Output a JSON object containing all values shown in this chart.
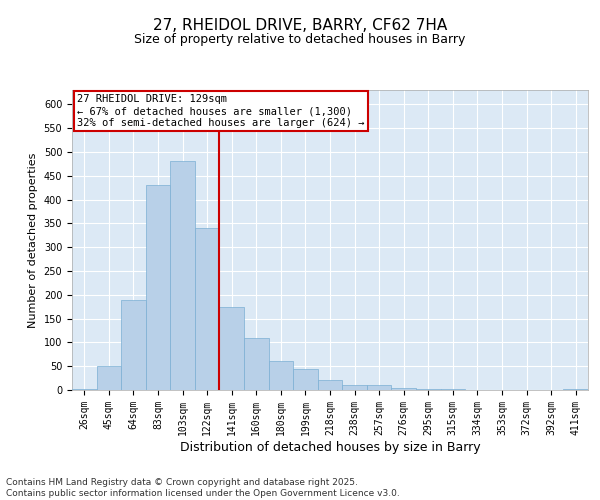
{
  "title_line1": "27, RHEIDOL DRIVE, BARRY, CF62 7HA",
  "title_line2": "Size of property relative to detached houses in Barry",
  "xlabel": "Distribution of detached houses by size in Barry",
  "ylabel": "Number of detached properties",
  "categories": [
    "26sqm",
    "45sqm",
    "64sqm",
    "83sqm",
    "103sqm",
    "122sqm",
    "141sqm",
    "160sqm",
    "180sqm",
    "199sqm",
    "218sqm",
    "238sqm",
    "257sqm",
    "276sqm",
    "295sqm",
    "315sqm",
    "334sqm",
    "353sqm",
    "372sqm",
    "392sqm",
    "411sqm"
  ],
  "values": [
    2,
    50,
    190,
    430,
    480,
    340,
    175,
    110,
    60,
    45,
    20,
    10,
    10,
    5,
    3,
    2,
    1,
    0,
    1,
    0,
    2
  ],
  "bar_color": "#b8d0e8",
  "bar_edgecolor": "#7aafd4",
  "vline_x": 5.5,
  "vline_color": "#cc0000",
  "ylim": [
    0,
    630
  ],
  "yticks": [
    0,
    50,
    100,
    150,
    200,
    250,
    300,
    350,
    400,
    450,
    500,
    550,
    600
  ],
  "annotation_title": "27 RHEIDOL DRIVE: 129sqm",
  "annotation_line1": "← 67% of detached houses are smaller (1,300)",
  "annotation_line2": "32% of semi-detached houses are larger (624) →",
  "annotation_box_edgecolor": "#cc0000",
  "background_color": "#dce9f5",
  "footer": "Contains HM Land Registry data © Crown copyright and database right 2025.\nContains public sector information licensed under the Open Government Licence v3.0.",
  "title_fontsize": 11,
  "subtitle_fontsize": 9,
  "ylabel_fontsize": 8,
  "xlabel_fontsize": 9,
  "tick_fontsize": 7,
  "footer_fontsize": 6.5,
  "ann_fontsize": 7.5
}
